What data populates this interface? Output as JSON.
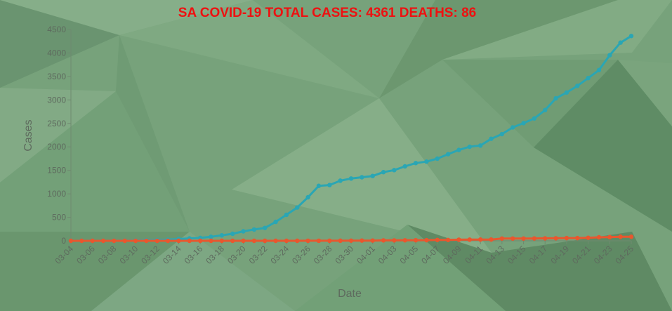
{
  "colors": {
    "title": "#ee1111",
    "cases_line": "#2aa6b4",
    "deaths_line": "#e8572e",
    "axis_text": "#5e6a5e",
    "axis_line": "#6f8a70"
  },
  "chart_data": {
    "type": "line",
    "title": "SA COVID-19 TOTAL CASES: 4361 DEATHS: 86",
    "xlabel": "Date",
    "ylabel": "Cases",
    "ylim": [
      0,
      4500
    ],
    "yticks": [
      0,
      500,
      1000,
      1500,
      2000,
      2500,
      3000,
      3500,
      4000,
      4500
    ],
    "grid": false,
    "x": [
      "03-04",
      "03-05",
      "03-06",
      "03-07",
      "03-08",
      "03-09",
      "03-10",
      "03-11",
      "03-12",
      "03-13",
      "03-14",
      "03-15",
      "03-16",
      "03-17",
      "03-18",
      "03-19",
      "03-20",
      "03-21",
      "03-22",
      "03-23",
      "03-24",
      "03-25",
      "03-26",
      "03-27",
      "03-28",
      "03-29",
      "03-30",
      "03-31",
      "04-01",
      "04-02",
      "04-03",
      "04-04",
      "04-05",
      "04-06",
      "04-07",
      "04-08",
      "04-09",
      "04-10",
      "04-11",
      "04-12",
      "04-13",
      "04-14",
      "04-15",
      "04-16",
      "04-17",
      "04-18",
      "04-19",
      "04-20",
      "04-21",
      "04-22",
      "04-23",
      "04-24",
      "04-25"
    ],
    "xtick_labels": [
      "03-04",
      "03-06",
      "03-08",
      "03-10",
      "03-12",
      "03-14",
      "03-16",
      "03-18",
      "03-20",
      "03-22",
      "03-24",
      "03-26",
      "03-28",
      "03-30",
      "04-01",
      "04-03",
      "04-05",
      "04-07",
      "04-09",
      "04-11",
      "04-13",
      "04-15",
      "04-17",
      "04-19",
      "04-21",
      "04-23",
      "04-25"
    ],
    "series": [
      {
        "key": "cases",
        "values": [
          1,
          1,
          1,
          1,
          2,
          3,
          7,
          13,
          17,
          24,
          38,
          51,
          62,
          85,
          116,
          150,
          202,
          240,
          274,
          402,
          554,
          709,
          927,
          1170,
          1187,
          1280,
          1326,
          1353,
          1380,
          1462,
          1505,
          1585,
          1655,
          1686,
          1749,
          1845,
          1934,
          2003,
          2028,
          2173,
          2272,
          2415,
          2506,
          2605,
          2783,
          3034,
          3158,
          3300,
          3465,
          3635,
          3953,
          4220,
          4361
        ]
      },
      {
        "key": "deaths",
        "values": [
          0,
          0,
          0,
          0,
          0,
          0,
          0,
          0,
          0,
          0,
          0,
          0,
          0,
          0,
          0,
          0,
          0,
          0,
          0,
          0,
          0,
          0,
          1,
          1,
          1,
          2,
          3,
          5,
          5,
          9,
          9,
          11,
          12,
          13,
          18,
          18,
          24,
          25,
          27,
          27,
          48,
          48,
          48,
          50,
          52,
          54,
          58,
          58,
          65,
          75,
          79,
          86,
          86
        ]
      }
    ]
  }
}
